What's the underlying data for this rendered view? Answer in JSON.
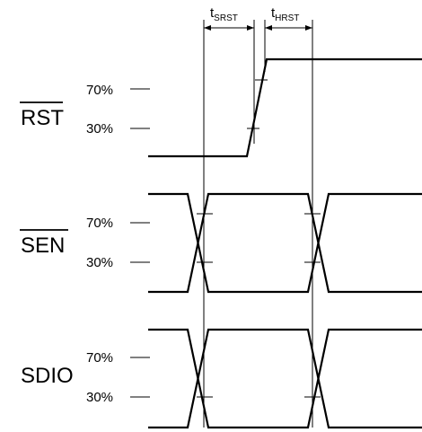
{
  "signals": [
    {
      "name": "RST",
      "overbar": true,
      "levels": [
        "70%",
        "30%"
      ]
    },
    {
      "name": "SEN",
      "overbar": true,
      "levels": [
        "70%",
        "30%"
      ]
    },
    {
      "name": "SDIO",
      "overbar": false,
      "levels": [
        "70%",
        "30%"
      ]
    }
  ],
  "timing": {
    "setup": {
      "main": "t",
      "sub": "SRST"
    },
    "hold": {
      "main": "t",
      "sub": "HRST"
    }
  }
}
